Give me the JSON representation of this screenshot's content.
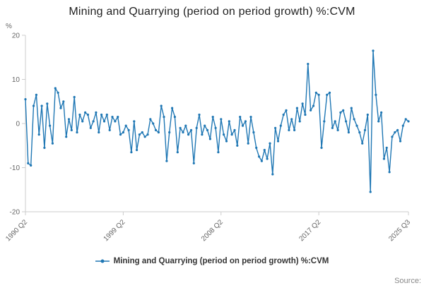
{
  "title": "Mining and Quarrying (period on period growth) %:CVM",
  "legend": {
    "label": "Mining and Quarrying (period on period growth) %:CVM"
  },
  "source_label": "Source:",
  "colors": {
    "line": "#1f77b4",
    "axis": "#cccccc",
    "tick_text": "#666666",
    "title_text": "#222222"
  },
  "chart_data": {
    "type": "line",
    "title": "Mining and Quarrying (period on period growth) %:CVM",
    "xlabel": "",
    "ylabel": "%",
    "ylim": [
      -20,
      20
    ],
    "y_ticks": [
      20,
      10,
      0,
      -10,
      -20
    ],
    "x_tick_labels": [
      "1990 Q2",
      "1999 Q2",
      "2008 Q2",
      "2017 Q2",
      "2025 Q3"
    ],
    "x_tick_indices": [
      0,
      36,
      72,
      108,
      141
    ],
    "x_start": "1990 Q2",
    "x_end": "2025 Q3",
    "frequency": "quarterly",
    "grid": false,
    "legend_position": "bottom",
    "series": [
      {
        "name": "Mining and Quarrying (period on period growth) %:CVM",
        "values": [
          5.5,
          -9,
          -9.5,
          4,
          6.5,
          -2.5,
          4,
          -5.5,
          4.5,
          -0.5,
          -4.5,
          8,
          7,
          3.5,
          5,
          -3,
          1,
          -1.5,
          6,
          -2,
          2,
          0.5,
          2.5,
          2,
          -1,
          0.5,
          2.5,
          -2,
          2,
          0.5,
          2,
          -1.5,
          1.5,
          0.5,
          1.5,
          -2.5,
          -2,
          -0.5,
          -1.5,
          -6.5,
          0.5,
          -6,
          -2.5,
          -2,
          -3,
          -2.5,
          1,
          0,
          -1.5,
          -2,
          4,
          1.5,
          -8.5,
          -2,
          3.5,
          1.5,
          -6.5,
          -1,
          -2,
          -0.5,
          -2.5,
          -1.5,
          -9,
          -1,
          2,
          -2.5,
          -0.5,
          -1.5,
          -3.5,
          1.5,
          -1,
          -6.5,
          1,
          -2.5,
          -4,
          0.5,
          -2.5,
          -1.5,
          -5,
          1.5,
          -0.5,
          0.5,
          -4.5,
          1.5,
          -2,
          -5.5,
          -7.5,
          -8.5,
          -6,
          -8,
          -4.5,
          -11.5,
          -1,
          -4,
          -0.5,
          2,
          3,
          -1.5,
          1,
          -1.5,
          3.5,
          0.5,
          4.5,
          2,
          13.5,
          3,
          4,
          7,
          6.5,
          -5.5,
          0.5,
          6.5,
          7,
          -1,
          0.5,
          -1.5,
          2.5,
          3,
          0.5,
          -2,
          3.5,
          1,
          -0.5,
          -2,
          -4.5,
          -1.5,
          2,
          -15.5,
          16.5,
          6.5,
          0.5,
          2.5,
          -8,
          -5.5,
          -11,
          -3,
          -2,
          -1.5,
          -4,
          -0.5,
          1,
          0.5
        ]
      }
    ]
  }
}
